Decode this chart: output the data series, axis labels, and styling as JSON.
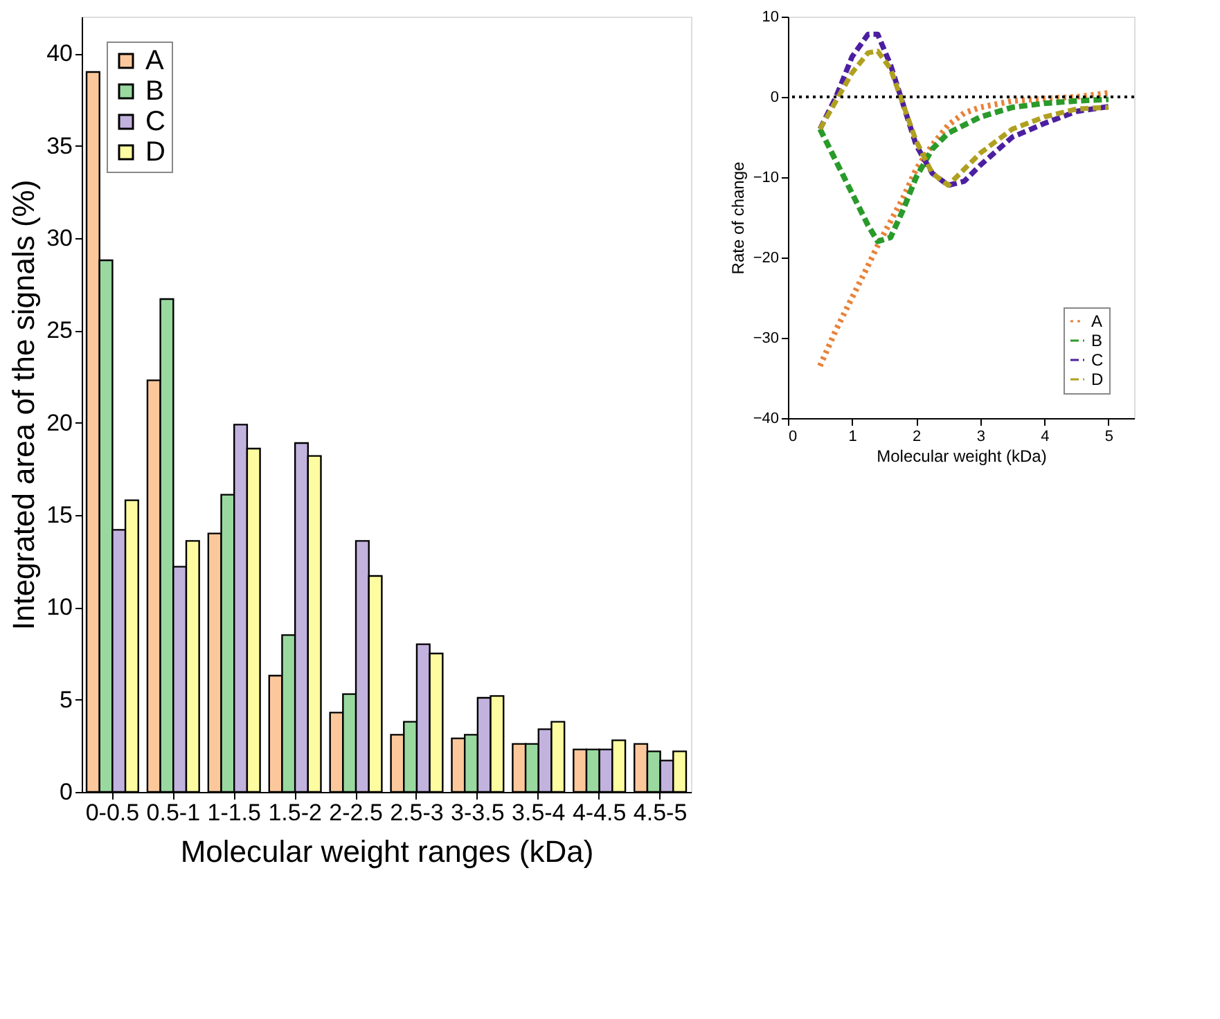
{
  "chart_data": [
    {
      "type": "bar",
      "xlabel": "Molecular weight ranges (kDa)",
      "ylabel": "Integrated area of the signals (%)",
      "categories": [
        "0-0.5",
        "0.5-1",
        "1-1.5",
        "1.5-2",
        "2-2.5",
        "2.5-3",
        "3-3.5",
        "3.5-4",
        "4-4.5",
        "4.5-5"
      ],
      "series": [
        {
          "name": "A",
          "color": "#fcc89b",
          "values": [
            39,
            22.3,
            14,
            6.3,
            4.3,
            3.1,
            2.9,
            2.6,
            2.3,
            2.6
          ]
        },
        {
          "name": "B",
          "color": "#99d9a0",
          "values": [
            28.8,
            26.7,
            16.1,
            8.5,
            5.3,
            3.8,
            3.1,
            2.6,
            2.3,
            2.2
          ]
        },
        {
          "name": "C",
          "color": "#c2b2de",
          "values": [
            14.2,
            12.2,
            19.9,
            18.9,
            13.6,
            8.0,
            5.1,
            3.4,
            2.3,
            1.7
          ]
        },
        {
          "name": "D",
          "color": "#fdfca0",
          "values": [
            15.8,
            13.6,
            18.6,
            18.2,
            11.7,
            7.5,
            5.2,
            3.8,
            2.8,
            2.2
          ]
        }
      ],
      "ylim": [
        0,
        42
      ],
      "yticks": [
        0,
        5,
        10,
        15,
        20,
        25,
        30,
        35,
        40
      ],
      "grid": false,
      "legend": "top left"
    },
    {
      "type": "line",
      "xlabel": "Molecular weight (kDa)",
      "ylabel": "Rate of change",
      "x": [
        0.5,
        0.75,
        1.0,
        1.25,
        1.4,
        1.6,
        1.8,
        2.0,
        2.25,
        2.5,
        2.75,
        3.0,
        3.5,
        4.0,
        4.5,
        5.0
      ],
      "series": [
        {
          "name": "A",
          "color": "#e8823a",
          "line_style": "dotted",
          "values": [
            -33.5,
            -29,
            -25,
            -21,
            -18.5,
            -15.5,
            -12.5,
            -9,
            -6,
            -3.5,
            -2,
            -1.3,
            -0.5,
            -0.2,
            0,
            0.5
          ]
        },
        {
          "name": "B",
          "color": "#2a9a2a",
          "line_style": "dashed",
          "values": [
            -4,
            -8,
            -12,
            -16,
            -18,
            -17.5,
            -14,
            -10,
            -6.5,
            -4.5,
            -3.5,
            -2.5,
            -1.3,
            -0.8,
            -0.5,
            -0.3
          ]
        },
        {
          "name": "C",
          "color": "#4b1fa0",
          "line_style": "dashed",
          "values": [
            -4,
            0,
            5,
            7.8,
            7.8,
            4,
            -1,
            -6,
            -9.5,
            -11,
            -10.5,
            -8.5,
            -5,
            -3.3,
            -1.8,
            -1.2
          ]
        },
        {
          "name": "D",
          "color": "#b0a020",
          "line_style": "dashed",
          "values": [
            -4,
            -0.5,
            3,
            5.5,
            5.7,
            3.5,
            -1,
            -5.5,
            -9.5,
            -11,
            -9,
            -7,
            -4,
            -2.5,
            -1.5,
            -1.3
          ]
        }
      ],
      "xlim": [
        0,
        5.4
      ],
      "xticks": [
        0,
        1,
        2,
        3,
        4,
        5
      ],
      "ylim": [
        -40,
        10
      ],
      "yticks": [
        -40,
        -30,
        -20,
        -10,
        0,
        10
      ],
      "grid": false,
      "legend": "bottom right",
      "ref_lines": [
        {
          "axis": "y",
          "value": 0,
          "color": "#000000",
          "line_style": "dotted"
        }
      ]
    }
  ]
}
